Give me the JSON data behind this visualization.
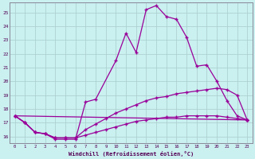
{
  "xlabel": "Windchill (Refroidissement éolien,°C)",
  "background_color": "#caf0f0",
  "grid_color": "#aacccc",
  "line_color": "#990099",
  "xlim_min": -0.5,
  "xlim_max": 23.5,
  "ylim_min": 15.5,
  "ylim_max": 25.7,
  "yticks": [
    16,
    17,
    18,
    19,
    20,
    21,
    22,
    23,
    24,
    25
  ],
  "xticks": [
    0,
    1,
    2,
    3,
    4,
    5,
    6,
    7,
    8,
    9,
    10,
    11,
    12,
    13,
    14,
    15,
    16,
    17,
    18,
    19,
    20,
    21,
    22,
    23
  ],
  "line1_x": [
    0,
    1,
    2,
    3,
    4,
    5,
    6,
    7,
    8,
    10,
    11,
    12,
    13,
    14,
    15,
    16,
    17,
    18,
    19,
    20,
    21,
    22,
    23
  ],
  "line1_y": [
    17.5,
    17.0,
    16.3,
    16.2,
    15.8,
    15.8,
    15.8,
    18.5,
    18.7,
    21.5,
    23.5,
    22.1,
    25.2,
    25.5,
    24.7,
    24.5,
    23.2,
    21.1,
    21.2,
    20.0,
    18.6,
    17.5,
    17.2
  ],
  "line2_x": [
    0,
    1,
    2,
    3,
    4,
    5,
    6,
    7,
    8,
    9,
    10,
    11,
    12,
    13,
    14,
    15,
    16,
    17,
    18,
    19,
    20,
    21,
    22,
    23
  ],
  "line2_y": [
    17.5,
    17.0,
    16.3,
    16.2,
    15.9,
    15.9,
    15.9,
    16.1,
    16.3,
    16.5,
    16.7,
    16.9,
    17.1,
    17.2,
    17.3,
    17.4,
    17.4,
    17.5,
    17.5,
    17.5,
    17.5,
    17.4,
    17.3,
    17.2
  ],
  "line3_x": [
    0,
    1,
    2,
    3,
    4,
    5,
    6,
    7,
    8,
    9,
    10,
    11,
    12,
    13,
    14,
    15,
    16,
    17,
    18,
    19,
    20,
    21,
    22,
    23
  ],
  "line3_y": [
    17.5,
    17.0,
    16.3,
    16.2,
    15.9,
    15.9,
    15.9,
    16.5,
    16.9,
    17.3,
    17.7,
    18.0,
    18.3,
    18.6,
    18.8,
    18.9,
    19.1,
    19.2,
    19.3,
    19.4,
    19.5,
    19.4,
    19.0,
    17.2
  ],
  "line4_x": [
    0,
    23
  ],
  "line4_y": [
    17.5,
    17.2
  ]
}
